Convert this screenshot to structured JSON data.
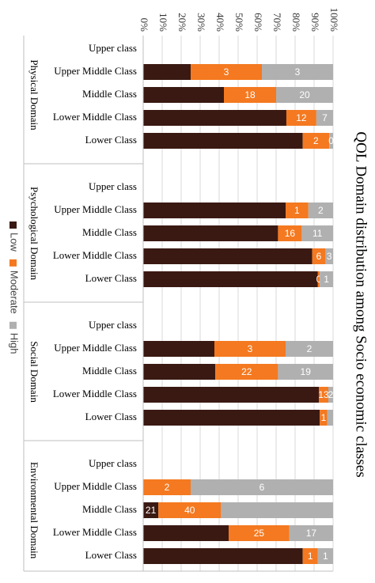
{
  "chart_data": {
    "type": "stacked_bar",
    "title": "QOL Domain distribution among Socio economic classes",
    "groups": [
      {
        "name": "Physical Domain",
        "categories": [
          "Upper class",
          "Upper Middle Class",
          "Middle Class",
          "Lower Middle Class",
          "Lower Class"
        ]
      },
      {
        "name": "Psychological Domain",
        "categories": [
          "Upper class",
          "Upper Middle Class",
          "Middle Class",
          "Lower Middle Class",
          "Lower Class"
        ]
      },
      {
        "name": "Social Domain",
        "categories": [
          "Upper class",
          "Upper Middle Class",
          "Middle Class",
          "Lower Middle Class",
          "Lower Class"
        ]
      },
      {
        "name": "Environmental Domain",
        "categories": [
          "Upper class",
          "Upper Middle Class",
          "Middle Class",
          "Lower Middle Class",
          "Lower Class"
        ]
      }
    ],
    "series": [
      {
        "name": "Low",
        "color": "#3a1913",
        "values": [
          null,
          25,
          42.5,
          75.4,
          84,
          null,
          75,
          71,
          89,
          92,
          null,
          37.5,
          38,
          92.5,
          93,
          null,
          0,
          8,
          45,
          84
        ],
        "data_labels": [
          null,
          null,
          null,
          null,
          null,
          null,
          null,
          null,
          null,
          null,
          null,
          null,
          null,
          null,
          null,
          null,
          null,
          21,
          null,
          null
        ]
      },
      {
        "name": "Moderate",
        "color": "#f47920",
        "values": [
          null,
          37.5,
          27.5,
          15.8,
          14,
          null,
          12,
          12.5,
          7,
          1,
          null,
          37.5,
          33,
          5,
          4,
          null,
          25,
          33,
          32,
          8
        ],
        "data_labels": [
          null,
          3,
          18,
          12,
          2,
          null,
          1,
          16,
          6,
          0,
          null,
          3,
          22,
          13,
          1,
          null,
          2,
          40,
          25,
          1
        ]
      },
      {
        "name": "High",
        "color": "#b0b0b0",
        "values": [
          null,
          37.5,
          30,
          8.8,
          2,
          null,
          13,
          16.5,
          4,
          7,
          null,
          25,
          29,
          2.5,
          3,
          null,
          75,
          59,
          23,
          8
        ],
        "data_labels": [
          null,
          3,
          20,
          7,
          0,
          null,
          2,
          11,
          3,
          1,
          null,
          2,
          19,
          2,
          null,
          null,
          6,
          null,
          17,
          1
        ]
      }
    ],
    "xlim": [
      0,
      100
    ],
    "xticks": [
      {
        "value": 0,
        "label": "0%"
      },
      {
        "value": 10,
        "label": "10%"
      },
      {
        "value": 20,
        "label": "20%"
      },
      {
        "value": 30,
        "label": "30%"
      },
      {
        "value": 40,
        "label": "40%"
      },
      {
        "value": 50,
        "label": "50%"
      },
      {
        "value": 60,
        "label": "60%"
      },
      {
        "value": 70,
        "label": "70%"
      },
      {
        "value": 80,
        "label": "80%"
      },
      {
        "value": 90,
        "label": "90%"
      },
      {
        "value": 100,
        "label": "100%"
      }
    ],
    "grid": true
  }
}
